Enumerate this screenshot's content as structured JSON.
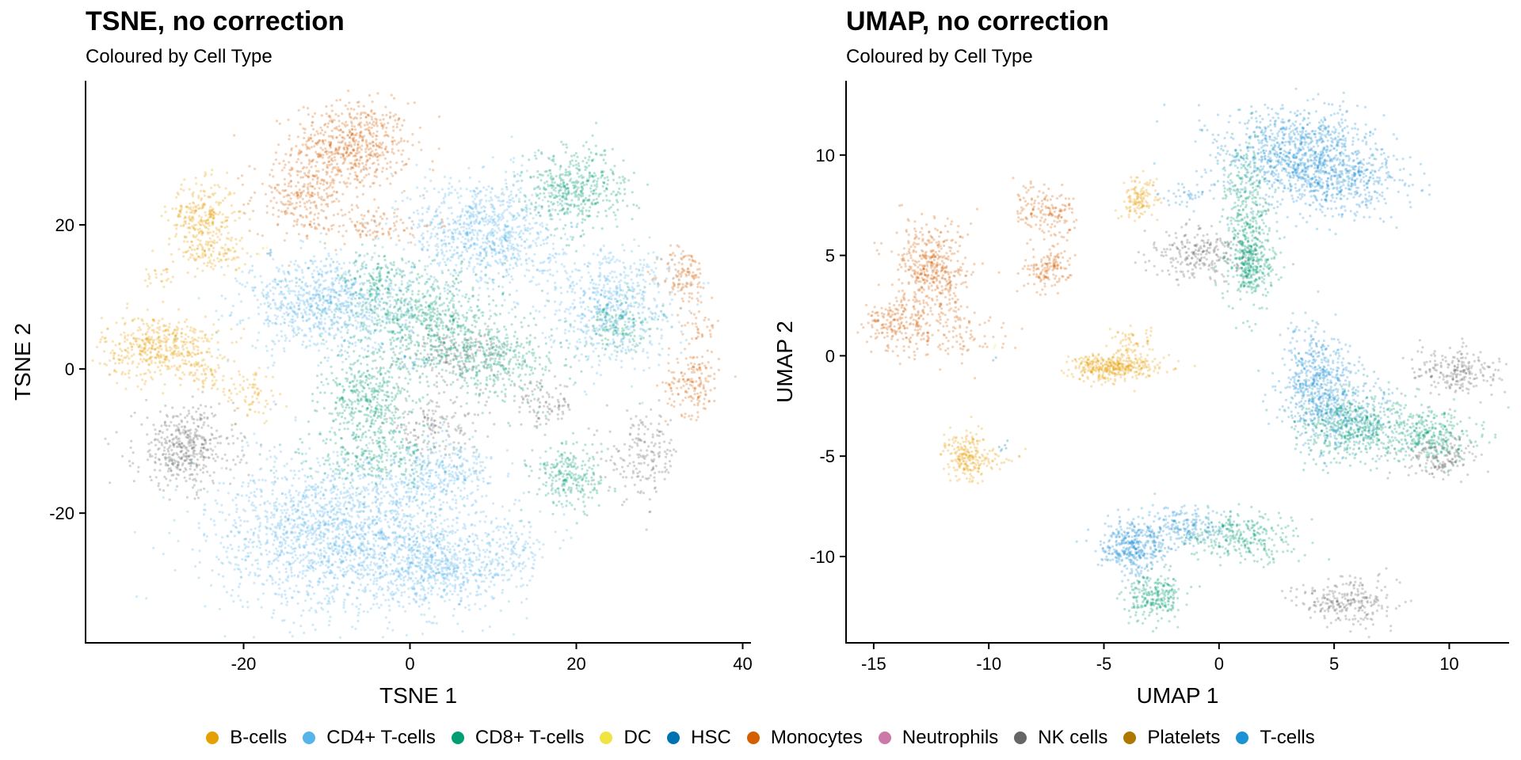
{
  "chart_data": [
    {
      "type": "scatter",
      "title": "TSNE, no correction",
      "subtitle": "Coloured by Cell Type",
      "xlabel": "TSNE 1",
      "ylabel": "TSNE 2",
      "xlim": [
        -39,
        41
      ],
      "ylim": [
        -38,
        40
      ],
      "xticks": [
        -20,
        0,
        20,
        40
      ],
      "yticks": [
        -20,
        0,
        20
      ],
      "grid": false,
      "clusters": [
        {
          "series": "Monocytes",
          "x": -7,
          "y": 31,
          "sx": 3.5,
          "sy": 3,
          "n": 600
        },
        {
          "series": "Monocytes",
          "x": -13,
          "y": 24,
          "sx": 3,
          "sy": 2.5,
          "n": 250
        },
        {
          "series": "Monocytes",
          "x": -5,
          "y": 20,
          "sx": 4,
          "sy": 1.2,
          "n": 120
        },
        {
          "series": "Monocytes",
          "x": 33,
          "y": 13,
          "sx": 1.4,
          "sy": 2,
          "n": 120
        },
        {
          "series": "Monocytes",
          "x": 34,
          "y": -2,
          "sx": 1.6,
          "sy": 2.2,
          "n": 160
        },
        {
          "series": "Monocytes",
          "x": 35,
          "y": 6,
          "sx": 1.2,
          "sy": 1.5,
          "n": 40
        },
        {
          "series": "B-cells",
          "x": -25,
          "y": 21,
          "sx": 2,
          "sy": 2.5,
          "n": 280
        },
        {
          "series": "B-cells",
          "x": -23.5,
          "y": 16,
          "sx": 2,
          "sy": 1.2,
          "n": 100
        },
        {
          "series": "B-cells",
          "x": -30,
          "y": 3,
          "sx": 3.5,
          "sy": 2.2,
          "n": 480
        },
        {
          "series": "B-cells",
          "x": -24,
          "y": -1,
          "sx": 1.5,
          "sy": 1,
          "n": 50
        },
        {
          "series": "B-cells",
          "x": -19,
          "y": -3.5,
          "sx": 1.6,
          "sy": 2,
          "n": 70
        },
        {
          "series": "B-cells",
          "x": -30,
          "y": 13,
          "sx": 1,
          "sy": 1,
          "n": 25
        },
        {
          "series": "NK cells",
          "x": -27,
          "y": -11,
          "sx": 3,
          "sy": 2.8,
          "n": 450
        },
        {
          "series": "NK cells",
          "x": 3,
          "y": -8,
          "sx": 3,
          "sy": 1.8,
          "n": 150
        },
        {
          "series": "NK cells",
          "x": 16,
          "y": -5,
          "sx": 2,
          "sy": 1.6,
          "n": 100
        },
        {
          "series": "NK cells",
          "x": 28,
          "y": -12,
          "sx": 2.2,
          "sy": 3,
          "n": 180
        },
        {
          "series": "NK cells",
          "x": 6,
          "y": 2,
          "sx": 3,
          "sy": 2,
          "n": 200
        },
        {
          "series": "CD4+ T-cells",
          "x": -10,
          "y": 9,
          "sx": 5,
          "sy": 3.2,
          "n": 900
        },
        {
          "series": "CD4+ T-cells",
          "x": 9,
          "y": 19,
          "sx": 4.5,
          "sy": 4,
          "n": 900
        },
        {
          "series": "CD4+ T-cells",
          "x": 24,
          "y": 9,
          "sx": 4,
          "sy": 4,
          "n": 650
        },
        {
          "series": "CD4+ T-cells",
          "x": -7,
          "y": -23,
          "sx": 8,
          "sy": 5.5,
          "n": 2200
        },
        {
          "series": "CD4+ T-cells",
          "x": 4,
          "y": -28,
          "sx": 3.5,
          "sy": 2.5,
          "n": 400
        },
        {
          "series": "CD4+ T-cells",
          "x": 12,
          "y": -26,
          "sx": 2,
          "sy": 2.5,
          "n": 150
        },
        {
          "series": "CD4+ T-cells",
          "x": 4,
          "y": -14,
          "sx": 3,
          "sy": 2,
          "n": 250
        },
        {
          "series": "CD8+ T-cells",
          "x": 20,
          "y": 25,
          "sx": 3,
          "sy": 2.8,
          "n": 450
        },
        {
          "series": "CD8+ T-cells",
          "x": 2,
          "y": 7,
          "sx": 5,
          "sy": 3.5,
          "n": 700
        },
        {
          "series": "CD8+ T-cells",
          "x": 10,
          "y": 1,
          "sx": 4,
          "sy": 2.5,
          "n": 350
        },
        {
          "series": "CD8+ T-cells",
          "x": -5,
          "y": -4,
          "sx": 2.8,
          "sy": 2.8,
          "n": 400
        },
        {
          "series": "CD8+ T-cells",
          "x": -4,
          "y": -12,
          "sx": 4,
          "sy": 2,
          "n": 260
        },
        {
          "series": "CD8+ T-cells",
          "x": 19,
          "y": -15,
          "sx": 2.2,
          "sy": 2.2,
          "n": 250
        },
        {
          "series": "CD8+ T-cells",
          "x": 25,
          "y": 6,
          "sx": 2,
          "sy": 2,
          "n": 150
        },
        {
          "series": "CD8+ T-cells",
          "x": -4,
          "y": 13,
          "sx": 2,
          "sy": 1.5,
          "n": 110
        },
        {
          "series": "T-cells",
          "x": 0,
          "y": 1,
          "sx": 1,
          "sy": 0.6,
          "n": 15
        },
        {
          "series": "HSC",
          "x": -17,
          "y": 16,
          "sx": 0.3,
          "sy": 0.3,
          "n": 5
        },
        {
          "series": "DC",
          "x": -17.5,
          "y": 16.5,
          "sx": 0.3,
          "sy": 0.3,
          "n": 4
        }
      ]
    },
    {
      "type": "scatter",
      "title": "UMAP, no correction",
      "subtitle": "Coloured by Cell Type",
      "xlabel": "UMAP 1",
      "ylabel": "UMAP 2",
      "xlim": [
        -16.2,
        12.6
      ],
      "ylim": [
        -14.3,
        13.7
      ],
      "xticks": [
        -15,
        -10,
        -5,
        0,
        5,
        10
      ],
      "yticks": [
        -10,
        -5,
        0,
        5,
        10
      ],
      "grid": false,
      "clusters": [
        {
          "series": "T-cells",
          "x": 3.5,
          "y": 10,
          "sx": 1.7,
          "sy": 1.2,
          "n": 1000
        },
        {
          "series": "T-cells",
          "x": 5.5,
          "y": 8.5,
          "sx": 1.5,
          "sy": 0.8,
          "n": 350
        },
        {
          "series": "T-cells",
          "x": 4.3,
          "y": -1.2,
          "sx": 0.8,
          "sy": 1.3,
          "n": 500
        },
        {
          "series": "T-cells",
          "x": 5.5,
          "y": -3,
          "sx": 1.2,
          "sy": 1,
          "n": 300
        },
        {
          "series": "T-cells",
          "x": -3.7,
          "y": -9.5,
          "sx": 0.7,
          "sy": 0.6,
          "n": 400
        },
        {
          "series": "T-cells",
          "x": -1.5,
          "y": -8.5,
          "sx": 1,
          "sy": 0.5,
          "n": 200
        },
        {
          "series": "T-cells",
          "x": -1.5,
          "y": 8,
          "sx": 0.5,
          "sy": 0.3,
          "n": 40
        },
        {
          "series": "CD8+ T-cells",
          "x": 1.2,
          "y": 6.5,
          "sx": 0.5,
          "sy": 2,
          "n": 450
        },
        {
          "series": "CD8+ T-cells",
          "x": 1.5,
          "y": 4.5,
          "sx": 0.5,
          "sy": 0.6,
          "n": 200
        },
        {
          "series": "CD8+ T-cells",
          "x": 6,
          "y": -3.5,
          "sx": 1.3,
          "sy": 0.9,
          "n": 500
        },
        {
          "series": "CD8+ T-cells",
          "x": 9.2,
          "y": -4,
          "sx": 1,
          "sy": 0.6,
          "n": 300
        },
        {
          "series": "CD8+ T-cells",
          "x": -2.9,
          "y": -12,
          "sx": 0.6,
          "sy": 0.6,
          "n": 250
        },
        {
          "series": "CD8+ T-cells",
          "x": 1,
          "y": -9,
          "sx": 1.3,
          "sy": 0.6,
          "n": 300
        },
        {
          "series": "NK cells",
          "x": -1,
          "y": 5,
          "sx": 1,
          "sy": 0.7,
          "n": 250
        },
        {
          "series": "NK cells",
          "x": 10.3,
          "y": -0.8,
          "sx": 1,
          "sy": 0.6,
          "n": 220
        },
        {
          "series": "NK cells",
          "x": 9.5,
          "y": -5,
          "sx": 0.8,
          "sy": 0.5,
          "n": 160
        },
        {
          "series": "NK cells",
          "x": 5.5,
          "y": -12.3,
          "sx": 1,
          "sy": 0.6,
          "n": 250
        },
        {
          "series": "Monocytes",
          "x": -12.5,
          "y": 4.3,
          "sx": 0.8,
          "sy": 1.2,
          "n": 450
        },
        {
          "series": "Monocytes",
          "x": -13.8,
          "y": 1.5,
          "sx": 0.8,
          "sy": 0.7,
          "n": 200
        },
        {
          "series": "Monocytes",
          "x": -11.5,
          "y": 1,
          "sx": 1.2,
          "sy": 0.6,
          "n": 100
        },
        {
          "series": "Monocytes",
          "x": -7.3,
          "y": 7,
          "sx": 0.5,
          "sy": 0.6,
          "n": 120
        },
        {
          "series": "Monocytes",
          "x": -7.5,
          "y": 4.3,
          "sx": 0.5,
          "sy": 0.5,
          "n": 140
        },
        {
          "series": "Monocytes",
          "x": -8.3,
          "y": 7.5,
          "sx": 0.3,
          "sy": 0.8,
          "n": 40
        },
        {
          "series": "B-cells",
          "x": -4.8,
          "y": -0.6,
          "sx": 0.8,
          "sy": 0.35,
          "n": 350
        },
        {
          "series": "B-cells",
          "x": -3.8,
          "y": 0.6,
          "sx": 0.4,
          "sy": 0.4,
          "n": 60
        },
        {
          "series": "B-cells",
          "x": -3.5,
          "y": 7.8,
          "sx": 0.4,
          "sy": 0.6,
          "n": 130
        },
        {
          "series": "B-cells",
          "x": -11,
          "y": -5,
          "sx": 0.45,
          "sy": 0.6,
          "n": 200
        },
        {
          "series": "B-cells",
          "x": -10,
          "y": -5.2,
          "sx": 0.6,
          "sy": 0.3,
          "n": 40
        },
        {
          "series": "B-cells",
          "x": -3,
          "y": -0.5,
          "sx": 0.8,
          "sy": 0.2,
          "n": 40
        },
        {
          "series": "HSC",
          "x": -9.3,
          "y": -4.6,
          "sx": 0.1,
          "sy": 0.2,
          "n": 6
        },
        {
          "series": "HSC",
          "x": -9.7,
          "y": -0.2,
          "sx": 0.05,
          "sy": 0.05,
          "n": 2
        },
        {
          "series": "DC",
          "x": -9.7,
          "y": 0.5,
          "sx": 0.05,
          "sy": 0.05,
          "n": 2
        }
      ]
    }
  ],
  "legend": [
    {
      "label": "B-cells",
      "color": "#E69F00"
    },
    {
      "label": "CD4+ T-cells",
      "color": "#56B4E9"
    },
    {
      "label": "CD8+ T-cells",
      "color": "#009E73"
    },
    {
      "label": "DC",
      "color": "#F0E442"
    },
    {
      "label": "HSC",
      "color": "#0072B2"
    },
    {
      "label": "Monocytes",
      "color": "#D55E00"
    },
    {
      "label": "Neutrophils",
      "color": "#CC79A7"
    },
    {
      "label": "NK cells",
      "color": "#666666"
    },
    {
      "label": "Platelets",
      "color": "#AD7700"
    },
    {
      "label": "T-cells",
      "color": "#1C91D4"
    }
  ]
}
